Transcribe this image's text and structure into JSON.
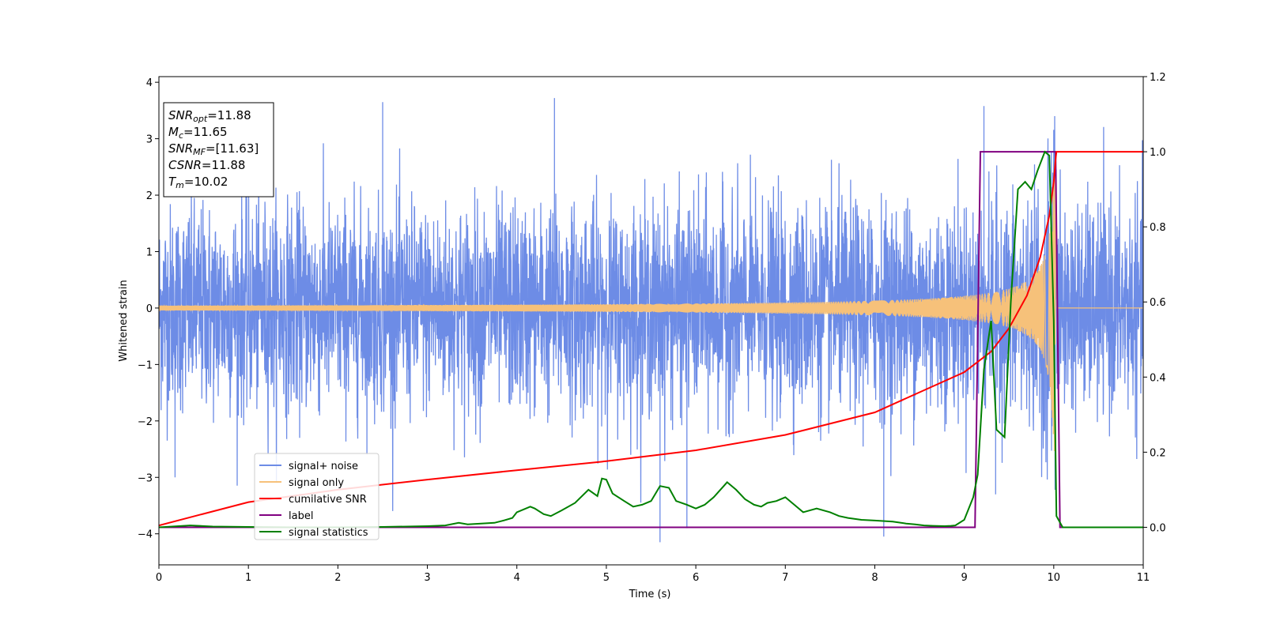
{
  "chart_data": {
    "type": "line",
    "xlabel": "Time (s)",
    "ylabel": "Whitened strain",
    "xlim": [
      0,
      11
    ],
    "ylim_left": [
      -4.55,
      4.1
    ],
    "ylim_right": [
      -0.1,
      1.2
    ],
    "x_ticks": [
      0,
      1,
      2,
      3,
      4,
      5,
      6,
      7,
      8,
      9,
      10,
      11
    ],
    "y_ticks_left": [
      4,
      3,
      2,
      1,
      0,
      -1,
      -2,
      -3,
      -4
    ],
    "y_ticks_right": [
      1.2,
      1.0,
      0.8,
      0.6,
      0.4,
      0.2,
      0.0
    ],
    "x_tick_labels": [
      "0",
      "1",
      "2",
      "3",
      "4",
      "5",
      "6",
      "7",
      "8",
      "9",
      "10",
      "11"
    ],
    "y_tick_labels_left": [
      "4",
      "3",
      "2",
      "1",
      "0",
      "−1",
      "−2",
      "−3",
      "−4"
    ],
    "y_tick_labels_right": [
      "1.2",
      "1.0",
      "0.8",
      "0.6",
      "0.4",
      "0.2",
      "0.0"
    ],
    "info_box": [
      {
        "main": "SNR",
        "sub": "opt",
        "value": "=11.88"
      },
      {
        "main": "M",
        "sub": "c",
        "value": "=11.65"
      },
      {
        "main": "SNR",
        "sub": "MF",
        "value": "=[11.63]"
      },
      {
        "main": "CSNR",
        "sub": "",
        "value": "=11.88"
      },
      {
        "main": "T",
        "sub": "m",
        "value": "=10.02"
      }
    ],
    "legend_position": "lower-left",
    "series": [
      {
        "name": "signal+ noise",
        "axis": "left",
        "color": "#6d8ce6",
        "noise_sigma": 0.9,
        "extremes": [
          [
            2.5,
            3.65
          ],
          [
            4.42,
            3.72
          ],
          [
            9.22,
            3.58
          ],
          [
            5.6,
            -4.15
          ],
          [
            5.9,
            -3.9
          ],
          [
            8.1,
            -4.05
          ],
          [
            0.18,
            -3.0
          ],
          [
            9.35,
            -3.3
          ]
        ]
      },
      {
        "name": "signal only",
        "axis": "left",
        "color": "#f6c17a",
        "merger_time": 10.02,
        "amplitude_at_merger": 2.6
      },
      {
        "name": "cumilative SNR",
        "axis": "right",
        "color": "#ff0000",
        "x": [
          0,
          1,
          2,
          3,
          4,
          5,
          6,
          7,
          8,
          9,
          9.3,
          9.5,
          9.7,
          9.85,
          9.95,
          10.0,
          10.02,
          10.03,
          11
        ],
        "y": [
          0.005,
          0.067,
          0.1,
          0.127,
          0.152,
          0.176,
          0.205,
          0.246,
          0.306,
          0.413,
          0.468,
          0.53,
          0.617,
          0.72,
          0.83,
          0.92,
          0.98,
          1.0,
          1.0
        ]
      },
      {
        "name": "label",
        "axis": "right",
        "color": "#800080",
        "x": [
          0,
          9.12,
          9.18,
          10.02,
          10.07,
          11
        ],
        "y": [
          0,
          0,
          1,
          1,
          0,
          0
        ]
      },
      {
        "name": "signal statistics",
        "axis": "right",
        "color": "#008000",
        "x": [
          0,
          0.35,
          0.6,
          1.0,
          1.5,
          2.0,
          2.5,
          3.0,
          3.2,
          3.35,
          3.45,
          3.6,
          3.75,
          3.85,
          3.95,
          4.0,
          4.15,
          4.2,
          4.3,
          4.38,
          4.5,
          4.65,
          4.8,
          4.9,
          4.95,
          5.0,
          5.07,
          5.2,
          5.3,
          5.4,
          5.5,
          5.6,
          5.7,
          5.78,
          5.9,
          6.0,
          6.1,
          6.2,
          6.35,
          6.45,
          6.55,
          6.65,
          6.73,
          6.8,
          6.9,
          7.0,
          7.1,
          7.2,
          7.35,
          7.5,
          7.6,
          7.7,
          7.85,
          8.0,
          8.2,
          8.35,
          8.45,
          8.55,
          8.65,
          8.78,
          8.85,
          8.9,
          9.0,
          9.1,
          9.15,
          9.22,
          9.3,
          9.36,
          9.45,
          9.52,
          9.6,
          9.68,
          9.75,
          9.82,
          9.9,
          9.95,
          10.0,
          10.03,
          10.1,
          11
        ],
        "y": [
          0,
          0.005,
          0.002,
          0.001,
          0.0,
          0.0,
          0.001,
          0.003,
          0.005,
          0.012,
          0.008,
          0.01,
          0.012,
          0.018,
          0.025,
          0.04,
          0.055,
          0.05,
          0.035,
          0.03,
          0.045,
          0.065,
          0.1,
          0.083,
          0.13,
          0.127,
          0.09,
          0.07,
          0.055,
          0.06,
          0.07,
          0.11,
          0.105,
          0.07,
          0.06,
          0.05,
          0.06,
          0.08,
          0.12,
          0.1,
          0.075,
          0.06,
          0.055,
          0.065,
          0.07,
          0.08,
          0.06,
          0.04,
          0.05,
          0.04,
          0.03,
          0.025,
          0.02,
          0.018,
          0.015,
          0.01,
          0.008,
          0.005,
          0.004,
          0.003,
          0.004,
          0.005,
          0.02,
          0.08,
          0.14,
          0.42,
          0.55,
          0.26,
          0.24,
          0.6,
          0.9,
          0.92,
          0.9,
          0.95,
          1.0,
          0.99,
          0.55,
          0.03,
          0.0,
          0.0
        ]
      }
    ]
  }
}
